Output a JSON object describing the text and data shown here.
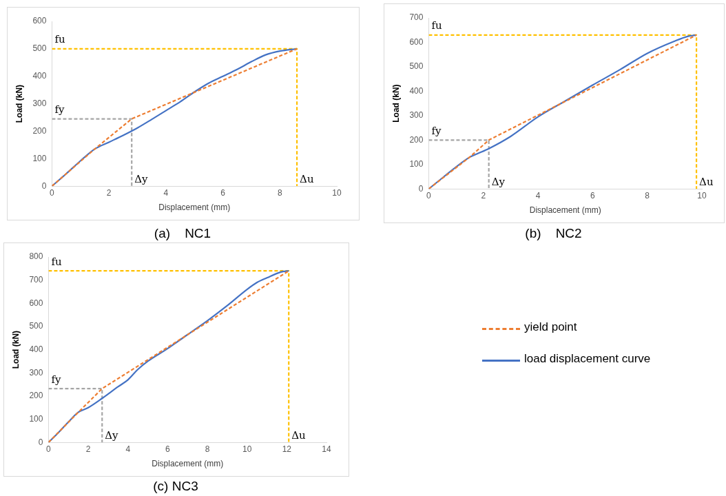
{
  "chart_data": [
    {
      "type": "line",
      "title": "(a)    NC1",
      "xlabel": "Displacement (mm)",
      "ylabel": "Load (kN)",
      "xlim": [
        0,
        10
      ],
      "xticks": [
        0,
        2,
        4,
        6,
        8,
        10
      ],
      "ylim": [
        0,
        600
      ],
      "yticks": [
        0,
        100,
        200,
        300,
        400,
        500,
        600
      ],
      "grid": false,
      "legend": false,
      "marker": "none",
      "series": [
        {
          "color": "#ed7d31",
          "line_style": "dashed",
          "x": [
            0,
            1.5,
            2.8,
            8.6
          ],
          "values": [
            0,
            135,
            245,
            500
          ]
        },
        {
          "color": "#4472c4",
          "line_style": "solid",
          "x": [
            0,
            0.5,
            1,
            1.5,
            2,
            2.5,
            3,
            3.5,
            4,
            4.5,
            5,
            5.5,
            6,
            6.5,
            7,
            7.5,
            8,
            8.6
          ],
          "values": [
            0,
            45,
            92,
            135,
            160,
            185,
            212,
            243,
            275,
            307,
            343,
            375,
            400,
            425,
            453,
            478,
            492,
            500
          ]
        },
        {
          "color": "#ffc000",
          "line_style": "dashed",
          "x": [
            0,
            8.6,
            8.6
          ],
          "values": [
            500,
            500,
            0
          ]
        },
        {
          "color": "#a5a5a5",
          "line_style": "dashed",
          "x": [
            0,
            2.8,
            2.8
          ],
          "values": [
            245,
            245,
            0
          ]
        }
      ],
      "annotations": [
        {
          "text": "fu",
          "x": 0,
          "y": 500
        },
        {
          "text": "fy",
          "x": 0,
          "y": 245
        },
        {
          "text": "Δy",
          "x": 2.8,
          "y": 0
        },
        {
          "text": "Δu",
          "x": 8.6,
          "y": 0
        }
      ]
    },
    {
      "type": "line",
      "title": "(b)    NC2",
      "xlabel": "Displacement (mm)",
      "ylabel": "Load (kN)",
      "xlim": [
        0,
        10
      ],
      "xticks": [
        0,
        2,
        4,
        6,
        8,
        10
      ],
      "ylim": [
        0,
        700
      ],
      "yticks": [
        0,
        100,
        200,
        300,
        400,
        500,
        600,
        700
      ],
      "grid": false,
      "legend": false,
      "marker": "none",
      "series": [
        {
          "color": "#ed7d31",
          "line_style": "dashed",
          "x": [
            0,
            1.5,
            2.2,
            9.8
          ],
          "values": [
            0,
            130,
            200,
            630
          ]
        },
        {
          "color": "#4472c4",
          "line_style": "solid",
          "x": [
            0,
            0.5,
            1,
            1.5,
            1.8,
            2.2,
            3,
            4,
            5,
            6,
            7,
            8,
            9,
            9.5,
            9.8
          ],
          "values": [
            0,
            45,
            90,
            130,
            145,
            165,
            215,
            295,
            360,
            425,
            488,
            555,
            605,
            625,
            630
          ]
        },
        {
          "color": "#ffc000",
          "line_style": "dashed",
          "x": [
            0,
            9.8,
            9.8
          ],
          "values": [
            630,
            630,
            0
          ]
        },
        {
          "color": "#a5a5a5",
          "line_style": "dashed",
          "x": [
            0,
            2.2,
            2.2
          ],
          "values": [
            200,
            200,
            0
          ]
        }
      ],
      "annotations": [
        {
          "text": "fu",
          "x": 0,
          "y": 630
        },
        {
          "text": "fy",
          "x": 0,
          "y": 200
        },
        {
          "text": "Δy",
          "x": 2.2,
          "y": 0
        },
        {
          "text": "Δu",
          "x": 9.8,
          "y": 0
        }
      ]
    },
    {
      "type": "line",
      "title": "(c) NC3",
      "xlabel": "Displacement (mm)",
      "ylabel": "Load (kN)",
      "xlim": [
        0,
        14
      ],
      "xticks": [
        0,
        2,
        4,
        6,
        8,
        10,
        12,
        14
      ],
      "ylim": [
        0,
        800
      ],
      "yticks": [
        0,
        100,
        200,
        300,
        400,
        500,
        600,
        700,
        800
      ],
      "grid": false,
      "legend": "right",
      "marker": "none",
      "series": [
        {
          "name": "yield point",
          "color": "#ed7d31",
          "line_style": "dashed",
          "x": [
            0,
            1.5,
            2.7,
            12.1
          ],
          "values": [
            0,
            130,
            232,
            740
          ]
        },
        {
          "name": "load displacement curve",
          "color": "#4472c4",
          "line_style": "solid",
          "x": [
            0,
            0.5,
            1,
            1.5,
            2,
            2.7,
            3.5,
            4,
            4.5,
            5,
            6,
            7,
            8,
            9,
            10,
            10.5,
            11,
            11.7,
            12.1
          ],
          "values": [
            0,
            42,
            88,
            130,
            150,
            190,
            240,
            270,
            315,
            350,
            405,
            465,
            525,
            590,
            660,
            690,
            710,
            735,
            740
          ]
        },
        {
          "color": "#ffc000",
          "line_style": "dashed",
          "x": [
            0,
            12.1,
            12.1
          ],
          "values": [
            740,
            740,
            0
          ]
        },
        {
          "color": "#a5a5a5",
          "line_style": "dashed",
          "x": [
            0,
            2.7,
            2.7
          ],
          "values": [
            232,
            232,
            0
          ]
        }
      ],
      "annotations": [
        {
          "text": "fu",
          "x": 0,
          "y": 740
        },
        {
          "text": "fy",
          "x": 0,
          "y": 232
        },
        {
          "text": "Δy",
          "x": 2.7,
          "y": 0
        },
        {
          "text": "Δu",
          "x": 12.1,
          "y": 0
        }
      ]
    }
  ]
}
